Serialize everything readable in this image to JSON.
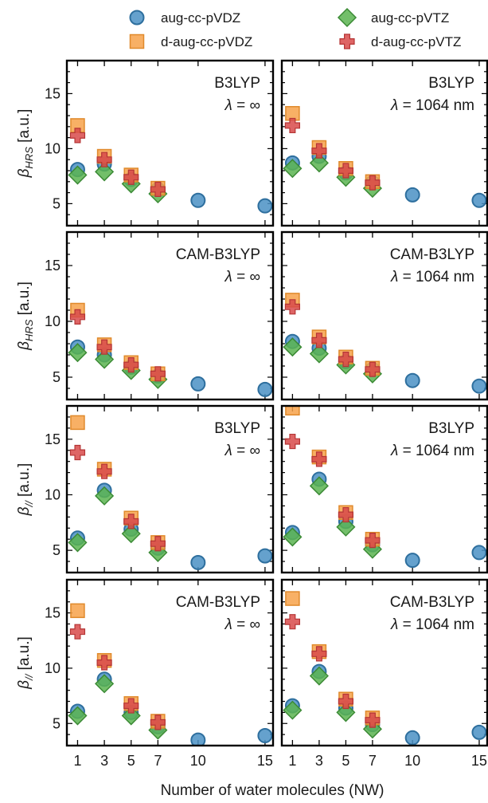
{
  "chart_data": {
    "type": "scatter",
    "xlabel": "Number of water molecules (NW)",
    "x_ticks": [
      1,
      3,
      5,
      7,
      10,
      15
    ],
    "y_ticks": [
      5,
      10,
      15
    ],
    "ylim": [
      3,
      18
    ],
    "grid": false,
    "legend_position": "top",
    "legend": [
      {
        "name": "aug-cc-pVDZ",
        "marker": "circle",
        "color": "#4a90c4",
        "edge": "#2e6f9e"
      },
      {
        "name": "aug-cc-pVTZ",
        "marker": "diamond",
        "color": "#5bb450",
        "edge": "#3b8a35"
      },
      {
        "name": "d-aug-cc-pVDZ",
        "marker": "square",
        "color": "#f7a24a",
        "edge": "#e08a2c"
      },
      {
        "name": "d-aug-cc-pVTZ",
        "marker": "plus",
        "color": "#d84a4a",
        "edge": "#b53535"
      }
    ],
    "panels": [
      {
        "row": 0,
        "col": 0,
        "ylabel_main": "β",
        "ylabel_sub": "HRS",
        "ylabel_unit": "[a.u.]",
        "functional": "B3LYP",
        "wavelength": "λ = ∞",
        "series": [
          {
            "name": "aug-cc-pVDZ",
            "x": [
              1,
              3,
              5,
              7,
              10,
              15
            ],
            "y": [
              8.1,
              8.6,
              7.2,
              6.3,
              5.3,
              4.8
            ]
          },
          {
            "name": "aug-cc-pVTZ",
            "x": [
              1,
              3,
              5,
              7
            ],
            "y": [
              7.6,
              7.9,
              6.8,
              5.9
            ]
          },
          {
            "name": "d-aug-cc-pVDZ",
            "x": [
              1,
              3,
              5,
              7
            ],
            "y": [
              12.1,
              9.3,
              7.6,
              6.4
            ]
          },
          {
            "name": "d-aug-cc-pVTZ",
            "x": [
              1,
              3,
              5,
              7
            ],
            "y": [
              11.2,
              9.0,
              7.4,
              6.3
            ]
          }
        ]
      },
      {
        "row": 0,
        "col": 1,
        "ylabel_main": "",
        "ylabel_sub": "",
        "ylabel_unit": "",
        "functional": "B3LYP",
        "wavelength": "λ = 1064 nm",
        "series": [
          {
            "name": "aug-cc-pVDZ",
            "x": [
              1,
              3,
              5,
              7,
              10,
              15
            ],
            "y": [
              8.7,
              9.3,
              7.8,
              6.9,
              5.8,
              5.3
            ]
          },
          {
            "name": "aug-cc-pVTZ",
            "x": [
              1,
              3,
              5,
              7
            ],
            "y": [
              8.2,
              8.7,
              7.4,
              6.4
            ]
          },
          {
            "name": "d-aug-cc-pVDZ",
            "x": [
              1,
              3,
              5,
              7
            ],
            "y": [
              13.2,
              10.1,
              8.2,
              7.0
            ]
          },
          {
            "name": "d-aug-cc-pVTZ",
            "x": [
              1,
              3,
              5,
              7
            ],
            "y": [
              12.1,
              9.8,
              8.0,
              6.9
            ]
          }
        ]
      },
      {
        "row": 1,
        "col": 0,
        "ylabel_main": "β",
        "ylabel_sub": "HRS",
        "ylabel_unit": "[a.u.]",
        "functional": "CAM-B3LYP",
        "wavelength": "λ = ∞",
        "series": [
          {
            "name": "aug-cc-pVDZ",
            "x": [
              1,
              3,
              5,
              7,
              10,
              15
            ],
            "y": [
              7.7,
              7.0,
              5.9,
              5.1,
              4.4,
              3.9
            ]
          },
          {
            "name": "aug-cc-pVTZ",
            "x": [
              1,
              3,
              5,
              7
            ],
            "y": [
              7.2,
              6.6,
              5.6,
              4.8
            ]
          },
          {
            "name": "d-aug-cc-pVDZ",
            "x": [
              1,
              3,
              5,
              7
            ],
            "y": [
              11.0,
              7.9,
              6.3,
              5.3
            ]
          },
          {
            "name": "d-aug-cc-pVTZ",
            "x": [
              1,
              3,
              5,
              7
            ],
            "y": [
              10.4,
              7.7,
              6.1,
              5.3
            ]
          }
        ]
      },
      {
        "row": 1,
        "col": 1,
        "ylabel_main": "",
        "ylabel_sub": "",
        "ylabel_unit": "",
        "functional": "CAM-B3LYP",
        "wavelength": "λ = 1064 nm",
        "series": [
          {
            "name": "aug-cc-pVDZ",
            "x": [
              1,
              3,
              5,
              7,
              10,
              15
            ],
            "y": [
              8.2,
              7.6,
              6.4,
              5.7,
              4.7,
              4.2
            ]
          },
          {
            "name": "aug-cc-pVTZ",
            "x": [
              1,
              3,
              5,
              7
            ],
            "y": [
              7.7,
              7.1,
              6.1,
              5.3
            ]
          },
          {
            "name": "d-aug-cc-pVDZ",
            "x": [
              1,
              3,
              5,
              7
            ],
            "y": [
              11.9,
              8.6,
              6.8,
              5.8
            ]
          },
          {
            "name": "d-aug-cc-pVTZ",
            "x": [
              1,
              3,
              5,
              7
            ],
            "y": [
              11.3,
              8.3,
              6.6,
              5.7
            ]
          }
        ]
      },
      {
        "row": 2,
        "col": 0,
        "ylabel_main": "β",
        "ylabel_sub": "//",
        "ylabel_unit": "[a.u.]",
        "functional": "B3LYP",
        "wavelength": "λ = ∞",
        "series": [
          {
            "name": "aug-cc-pVDZ",
            "x": [
              1,
              3,
              5,
              7,
              10,
              15
            ],
            "y": [
              6.1,
              10.4,
              6.9,
              5.2,
              3.9,
              4.5
            ]
          },
          {
            "name": "aug-cc-pVTZ",
            "x": [
              1,
              3,
              5,
              7
            ],
            "y": [
              5.7,
              9.9,
              6.5,
              4.8
            ]
          },
          {
            "name": "d-aug-cc-pVDZ",
            "x": [
              1,
              3,
              5,
              7
            ],
            "y": [
              16.5,
              12.3,
              7.9,
              5.7
            ]
          },
          {
            "name": "d-aug-cc-pVTZ",
            "x": [
              1,
              3,
              5,
              7
            ],
            "y": [
              13.8,
              12.1,
              7.6,
              5.6
            ]
          }
        ]
      },
      {
        "row": 2,
        "col": 1,
        "ylabel_main": "",
        "ylabel_sub": "",
        "ylabel_unit": "",
        "functional": "B3LYP",
        "wavelength": "λ = 1064 nm",
        "series": [
          {
            "name": "aug-cc-pVDZ",
            "x": [
              1,
              3,
              5,
              7,
              10,
              15
            ],
            "y": [
              6.6,
              11.4,
              7.6,
              5.5,
              4.1,
              4.8
            ]
          },
          {
            "name": "aug-cc-pVTZ",
            "x": [
              1,
              3,
              5,
              7
            ],
            "y": [
              6.2,
              10.8,
              7.1,
              5.1
            ]
          },
          {
            "name": "d-aug-cc-pVDZ",
            "x": [
              1,
              3,
              5,
              7
            ],
            "y": [
              17.8,
              13.4,
              8.4,
              6.0
            ]
          },
          {
            "name": "d-aug-cc-pVTZ",
            "x": [
              1,
              3,
              5,
              7
            ],
            "y": [
              14.8,
              13.2,
              8.2,
              5.9
            ]
          }
        ]
      },
      {
        "row": 3,
        "col": 0,
        "ylabel_main": "β",
        "ylabel_sub": "//",
        "ylabel_unit": "[a.u.]",
        "functional": "CAM-B3LYP",
        "wavelength": "λ = ∞",
        "series": [
          {
            "name": "aug-cc-pVDZ",
            "x": [
              1,
              3,
              5,
              7,
              10,
              15
            ],
            "y": [
              6.1,
              9.0,
              6.0,
              4.7,
              3.5,
              3.9
            ]
          },
          {
            "name": "aug-cc-pVTZ",
            "x": [
              1,
              3,
              5,
              7
            ],
            "y": [
              5.7,
              8.6,
              5.7,
              4.4
            ]
          },
          {
            "name": "d-aug-cc-pVDZ",
            "x": [
              1,
              3,
              5,
              7
            ],
            "y": [
              15.2,
              10.7,
              6.8,
              5.2
            ]
          },
          {
            "name": "d-aug-cc-pVTZ",
            "x": [
              1,
              3,
              5,
              7
            ],
            "y": [
              13.3,
              10.5,
              6.6,
              5.1
            ]
          }
        ]
      },
      {
        "row": 3,
        "col": 1,
        "ylabel_main": "",
        "ylabel_sub": "",
        "ylabel_unit": "",
        "functional": "CAM-B3LYP",
        "wavelength": "λ = 1064 nm",
        "series": [
          {
            "name": "aug-cc-pVDZ",
            "x": [
              1,
              3,
              5,
              7,
              10,
              15
            ],
            "y": [
              6.6,
              9.7,
              6.4,
              4.9,
              3.7,
              4.2
            ]
          },
          {
            "name": "aug-cc-pVTZ",
            "x": [
              1,
              3,
              5,
              7
            ],
            "y": [
              6.2,
              9.3,
              6.0,
              4.5
            ]
          },
          {
            "name": "d-aug-cc-pVDZ",
            "x": [
              1,
              3,
              5,
              7
            ],
            "y": [
              16.3,
              11.5,
              7.2,
              5.5
            ]
          },
          {
            "name": "d-aug-cc-pVTZ",
            "x": [
              1,
              3,
              5,
              7
            ],
            "y": [
              14.2,
              11.3,
              7.0,
              5.3
            ]
          }
        ]
      }
    ]
  }
}
